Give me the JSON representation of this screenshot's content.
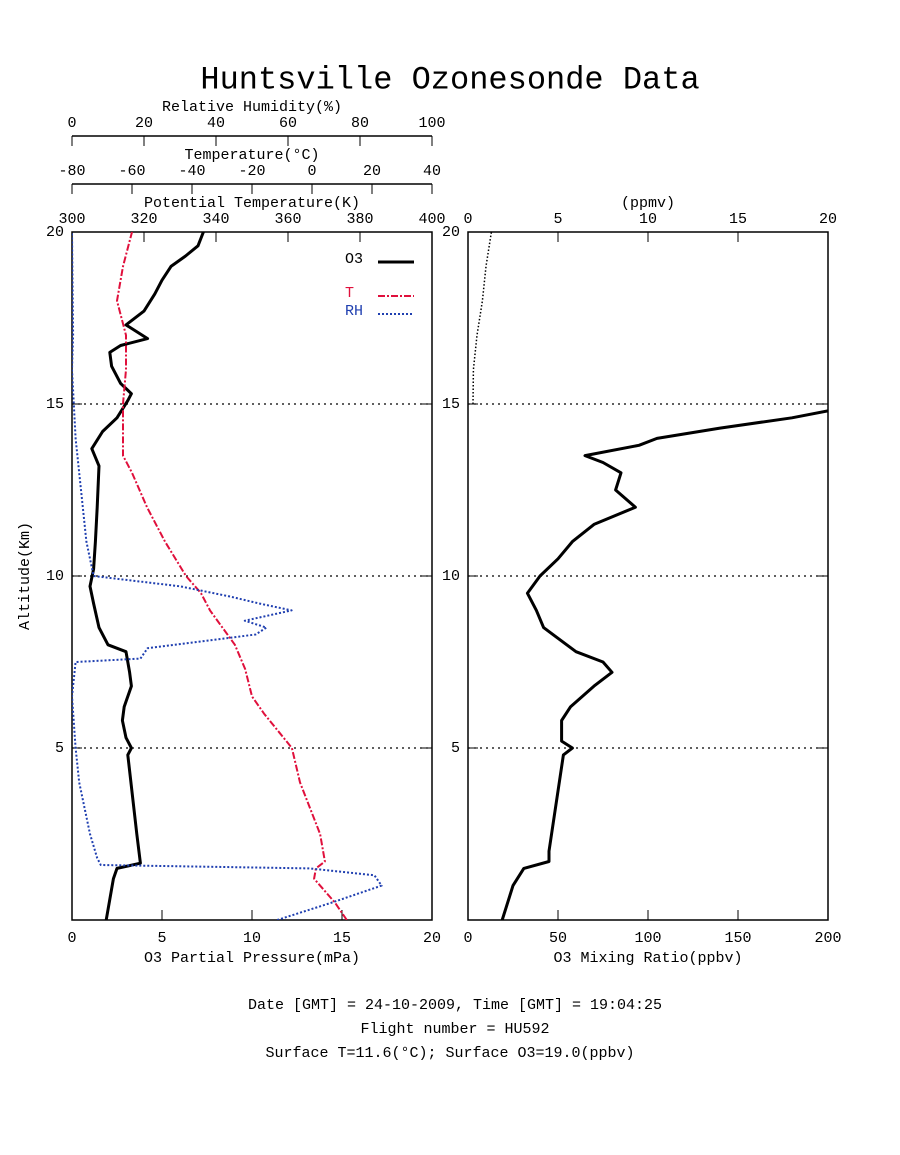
{
  "title": "Huntsville Ozonesonde Data",
  "footer": [
    "Date [GMT] = 24-10-2009,  Time [GMT] = 19:04:25",
    "Flight number = HU592",
    "Surface T=11.6(°C); Surface O3=19.0(ppbv)"
  ],
  "chart_data": [
    {
      "type": "line",
      "ylabel": "Altitude(Km)",
      "ylim": [
        0,
        20
      ],
      "yticks": [
        5,
        10,
        15,
        20
      ],
      "grid": true,
      "legend": "upper right",
      "axes": [
        {
          "position": "bottom",
          "label": "O3 Partial Pressure(mPa)",
          "xlim": [
            0,
            20
          ],
          "xticks": [
            0,
            5,
            10,
            15,
            20
          ]
        },
        {
          "position": "top",
          "label": "Potential Temperature(K)",
          "xlim": [
            300,
            400
          ],
          "xticks": [
            300,
            320,
            340,
            360,
            380,
            400
          ]
        },
        {
          "position": "top",
          "label": "Temperature(°C)",
          "xlim": [
            -80,
            40
          ],
          "xticks": [
            -80,
            -60,
            -40,
            -20,
            0,
            20,
            40
          ]
        },
        {
          "position": "top",
          "label": "Relative Humidity(%)",
          "xlim": [
            0,
            100
          ],
          "xticks": [
            0,
            20,
            40,
            60,
            80,
            100
          ]
        }
      ],
      "series": [
        {
          "name": "O3",
          "color": "#000000",
          "axis": 0,
          "x": [
            1.9,
            2.1,
            2.3,
            2.5,
            3.8,
            3.6,
            3.1,
            3.3,
            3.0,
            2.8,
            2.9,
            3.3,
            3.2,
            3.0,
            2.0,
            1.5,
            1.2,
            1.0,
            1.2,
            1.3,
            1.4,
            1.5,
            1.1,
            1.7,
            2.5,
            3.1,
            3.3,
            2.7,
            2.2,
            2.1,
            2.7,
            4.2,
            3.0,
            4.0,
            4.6,
            5.0,
            5.5,
            6.3,
            7.0,
            7.3
          ],
          "y": [
            0,
            0.6,
            1.2,
            1.5,
            1.65,
            2.5,
            4.8,
            5.0,
            5.3,
            5.8,
            6.2,
            6.8,
            7.2,
            7.8,
            8.0,
            8.5,
            9.2,
            9.7,
            10.2,
            11,
            12,
            13.2,
            13.7,
            14.2,
            14.6,
            15.1,
            15.3,
            15.6,
            16.1,
            16.5,
            16.7,
            16.9,
            17.3,
            17.7,
            18.2,
            18.6,
            19.0,
            19.3,
            19.6,
            20
          ]
        },
        {
          "name": "T",
          "color": "#e0103c",
          "axis": 2,
          "x": [
            11.6,
            7.7,
            0.7,
            1.3,
            4.3,
            2.7,
            -4,
            -6.7,
            -16,
            -20,
            -22.3,
            -25.7,
            -34,
            -37,
            -42,
            -49,
            -55,
            -60,
            -63,
            -63,
            -63,
            -62,
            -62,
            -65,
            -63,
            -60
          ],
          "y": [
            0,
            0.5,
            1.2,
            1.5,
            1.7,
            2.5,
            4,
            5,
            6,
            6.5,
            7.3,
            8,
            9,
            9.5,
            10,
            11,
            12,
            13,
            13.5,
            14,
            15,
            16,
            17,
            18,
            19,
            20
          ]
        },
        {
          "name": "RH",
          "color": "#1f3fb0",
          "axis": 3,
          "x": [
            57,
            72,
            86,
            84,
            66,
            8,
            7,
            5,
            2,
            1,
            0,
            1,
            19,
            21,
            51,
            54,
            48,
            61,
            52,
            44,
            30,
            6,
            5,
            4,
            3,
            2,
            1,
            0.5,
            0,
            0.3,
            0
          ],
          "y": [
            0,
            0.5,
            1.0,
            1.3,
            1.5,
            1.6,
            1.8,
            2.5,
            4,
            5,
            6.5,
            7.5,
            7.6,
            7.9,
            8.3,
            8.5,
            8.7,
            9.0,
            9.2,
            9.4,
            9.7,
            10,
            10.5,
            11,
            12,
            13,
            14,
            15,
            16,
            17,
            20
          ]
        }
      ]
    },
    {
      "type": "line",
      "ylim": [
        0,
        20
      ],
      "yticks": [
        5,
        10,
        15,
        20
      ],
      "grid": true,
      "axes": [
        {
          "position": "bottom",
          "label": "O3 Mixing Ratio(ppbv)",
          "xlim": [
            0,
            200
          ],
          "xticks": [
            0,
            50,
            100,
            150,
            200
          ]
        },
        {
          "position": "top",
          "label": "(ppmv)",
          "xlim": [
            0,
            20
          ],
          "xticks": [
            0,
            5,
            10,
            15,
            20
          ]
        }
      ],
      "series": [
        {
          "color": "#000000",
          "axis": 0,
          "x": [
            19,
            22,
            25,
            31,
            45,
            45,
            53,
            58,
            52,
            52,
            57,
            70,
            80,
            75,
            60,
            42,
            38,
            33,
            40,
            50,
            58,
            70,
            93,
            82,
            85,
            75,
            65,
            95,
            105,
            140,
            180,
            200
          ],
          "y": [
            0,
            0.5,
            1,
            1.5,
            1.7,
            2,
            4.8,
            5,
            5.2,
            5.8,
            6.2,
            6.8,
            7.2,
            7.5,
            7.8,
            8.5,
            9.0,
            9.5,
            10,
            10.5,
            11,
            11.5,
            12,
            12.5,
            13,
            13.3,
            13.5,
            13.8,
            14,
            14.3,
            14.6,
            14.8
          ]
        },
        {
          "color": "#000000",
          "axis": 1,
          "x": [
            0.28,
            0.3,
            0.5,
            0.8,
            1.0,
            1.3
          ],
          "y": [
            15,
            16,
            17,
            18,
            19,
            20
          ]
        }
      ]
    }
  ]
}
